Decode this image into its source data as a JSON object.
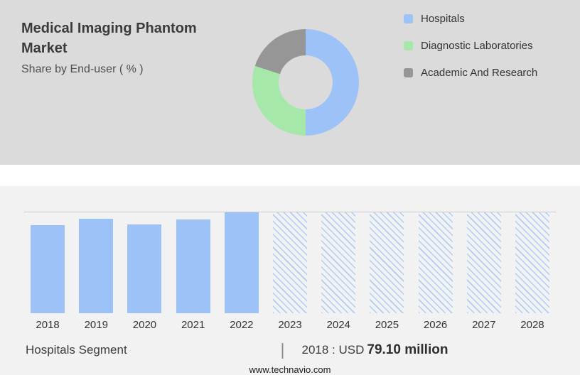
{
  "header": {
    "title_lines": [
      "Medical Imaging Phantom",
      "Market"
    ],
    "subtitle": "Share by End-user ( % )"
  },
  "colors": {
    "blue": "#9CC2F7",
    "green": "#A6E7AA",
    "gray": "#969696",
    "panel-bg": "#DBDBDB",
    "lower-bg": "#F2F2F2",
    "hatch": "#AECDF7"
  },
  "chart_data": [
    {
      "type": "pie",
      "donut": true,
      "title": "Share by End-user ( % )",
      "legend_position": "right",
      "slices": [
        {
          "label": "Hospitals",
          "value": 50,
          "color": "#9CC2F7"
        },
        {
          "label": "Diagnostic Laboratories",
          "value": 30,
          "color": "#A6E7AA"
        },
        {
          "label": "Academic And Research",
          "value": 20,
          "color": "#969696"
        }
      ],
      "note": "slice percentages estimated from arc angles"
    },
    {
      "type": "bar",
      "title": "Hospitals Segment market size 2018-2028",
      "xlabel": "",
      "ylabel": "",
      "categories": [
        "2018",
        "2019",
        "2020",
        "2021",
        "2022",
        "2023",
        "2024",
        "2025",
        "2026",
        "2027",
        "2028"
      ],
      "known_values": {
        "2018": "USD 79.10 million"
      },
      "bars": [
        {
          "year": "2018",
          "height_pct": 87,
          "forecast": false
        },
        {
          "year": "2019",
          "height_pct": 94,
          "forecast": false
        },
        {
          "year": "2020",
          "height_pct": 88,
          "forecast": false
        },
        {
          "year": "2021",
          "height_pct": 93,
          "forecast": false
        },
        {
          "year": "2022",
          "height_pct": 100,
          "forecast": false
        },
        {
          "year": "2023",
          "height_pct": 100,
          "forecast": true
        },
        {
          "year": "2024",
          "height_pct": 100,
          "forecast": true
        },
        {
          "year": "2025",
          "height_pct": 100,
          "forecast": true
        },
        {
          "year": "2026",
          "height_pct": 100,
          "forecast": true
        },
        {
          "year": "2027",
          "height_pct": 100,
          "forecast": true
        },
        {
          "year": "2028",
          "height_pct": 100,
          "forecast": true
        }
      ],
      "note": "2023-2028 drawn as hatched forecast placeholders; heights are % of plot area read from pixels"
    }
  ],
  "footer": {
    "annotation_left": "Hospitals Segment",
    "divider": "|",
    "value_prefix": "2018 : USD",
    "value_bold": "79.10 million",
    "website": "www.technavio.com"
  }
}
